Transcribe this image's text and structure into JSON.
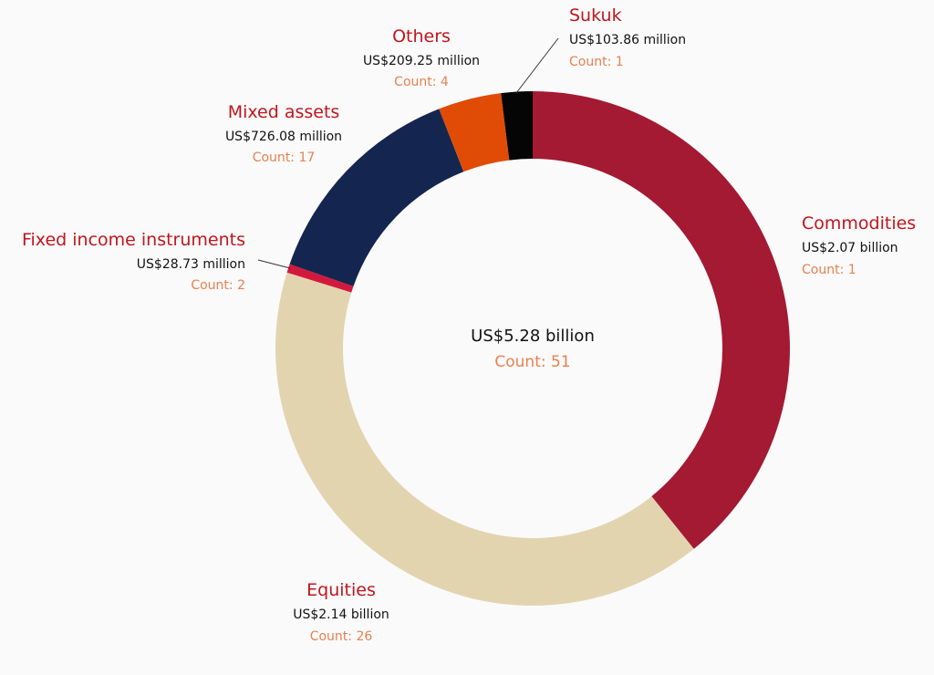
{
  "colors": {
    "category_text": "#c0151c",
    "count_text": "#e8804f",
    "value_text": "#111111"
  },
  "chart_data": {
    "type": "pie",
    "donut": true,
    "center": {
      "value": "US$5.28 billion",
      "count": "Count: 51"
    },
    "slices": [
      {
        "label": "Commodities",
        "value_text": "US$2.07 billion",
        "count_text": "Count: 1",
        "value": 2070,
        "color": "#a31a32"
      },
      {
        "label": "Equities",
        "value_text": "US$2.14 billion",
        "count_text": "Count: 26",
        "value": 2140,
        "color": "#e3d4b0"
      },
      {
        "label": "Fixed income instruments",
        "value_text": "US$28.73 million",
        "count_text": "Count: 2",
        "value": 28.73,
        "color": "#d2193d"
      },
      {
        "label": "Mixed assets",
        "value_text": "US$726.08 million",
        "count_text": "Count: 17",
        "value": 726.08,
        "color": "#14264f"
      },
      {
        "label": "Others",
        "value_text": "US$209.25 million",
        "count_text": "Count: 4",
        "value": 209.25,
        "color": "#e04b06"
      },
      {
        "label": "Sukuk",
        "value_text": "US$103.86 million",
        "count_text": "Count: 1",
        "value": 103.86,
        "color": "#050505"
      }
    ]
  }
}
